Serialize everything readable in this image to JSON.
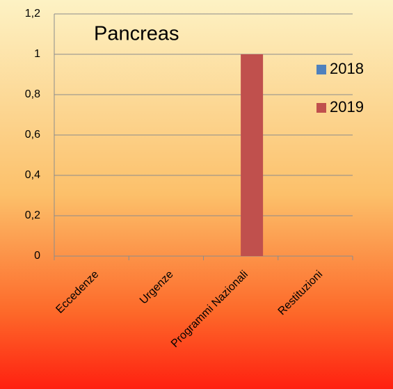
{
  "chart_data": {
    "type": "bar",
    "title": "Pancreas",
    "categories": [
      "Eccedenze",
      "Urgenze",
      "Programmi Nazionali",
      "Restituzioni"
    ],
    "series": [
      {
        "name": "2018",
        "color": "#4f81bd",
        "values": [
          0,
          0,
          0,
          0
        ]
      },
      {
        "name": "2019",
        "color": "#c0504d",
        "values": [
          0,
          0,
          1,
          0
        ]
      }
    ],
    "ylim": [
      0,
      1.2
    ],
    "yticks": [
      0,
      {
        "value": 0.2,
        "label": "0,2"
      },
      {
        "value": 0.4,
        "label": "0,4"
      },
      {
        "value": 0.6,
        "label": "0,6"
      },
      {
        "value": 0.8,
        "label": "0,8"
      },
      1,
      {
        "value": 1.2,
        "label": "1,2"
      }
    ],
    "grid": true,
    "legend": "right"
  }
}
